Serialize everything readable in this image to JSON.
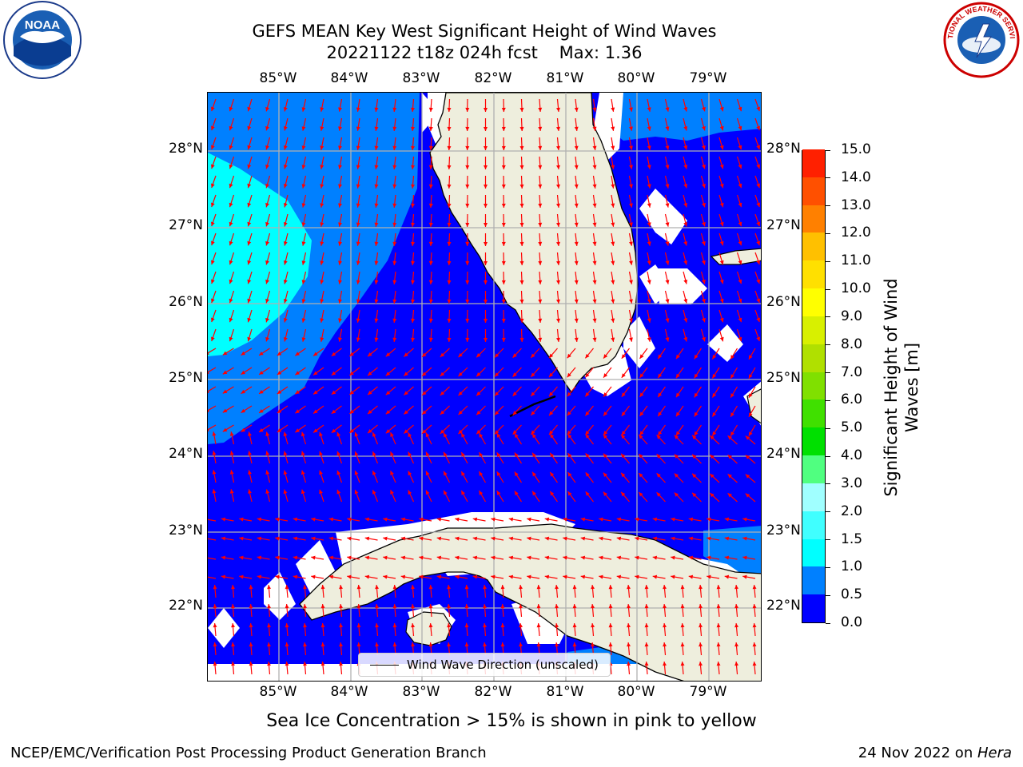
{
  "title": {
    "line1": "GEFS MEAN Key West Significant Height of Wind Waves",
    "line2": "20221122 t18z 024h fcst    Max: 1.36"
  },
  "logos": {
    "noaa": "NOAA",
    "nws_text": "NATIONAL WEATHER SERVICE"
  },
  "axes": {
    "lon_labels": [
      "85°W",
      "84°W",
      "83°W",
      "82°W",
      "81°W",
      "80°W",
      "79°W"
    ],
    "lat_labels": [
      "28°N",
      "27°N",
      "26°N",
      "25°N",
      "24°N",
      "23°N",
      "22°N"
    ],
    "lon_range": [
      -86.0,
      -78.3
    ],
    "lat_range": [
      21.0,
      28.8
    ]
  },
  "colorbar": {
    "title": "Significant Height of Wind Waves [m]",
    "title_line1": "Significant Height of Wind",
    "title_line2": "Waves [m]",
    "ticks": [
      "0.0",
      "0.5",
      "1.0",
      "1.5",
      "2.0",
      "3.0",
      "4.0",
      "5.0",
      "6.0",
      "7.0",
      "8.0",
      "9.0",
      "10.0",
      "11.0",
      "12.0",
      "13.0",
      "14.0",
      "15.0"
    ],
    "colors": [
      "#0000ff",
      "#0080ff",
      "#00ffff",
      "#40ffff",
      "#a0ffff",
      "#50ff80",
      "#00e000",
      "#40e000",
      "#80e000",
      "#b0e000",
      "#d8f000",
      "#ffff00",
      "#ffe000",
      "#ffc000",
      "#ff8000",
      "#ff5000",
      "#ff2000"
    ]
  },
  "legend": {
    "label": "Wind Wave Direction (unscaled)"
  },
  "colors": {
    "land": "#eeeedd",
    "arrow": "#ff0000",
    "grid": "#b0b0b0",
    "band_0_05": "#0000ff",
    "band_05_10": "#0080ff",
    "band_10_15": "#00ffff"
  },
  "notes": {
    "sea_ice": "Sea Ice Concentration > 15% is shown in pink to yellow"
  },
  "footer": {
    "left": "NCEP/EMC/Verification Post Processing Product Generation Branch",
    "date": "24 Nov 2022 on ",
    "system": "Hera"
  }
}
